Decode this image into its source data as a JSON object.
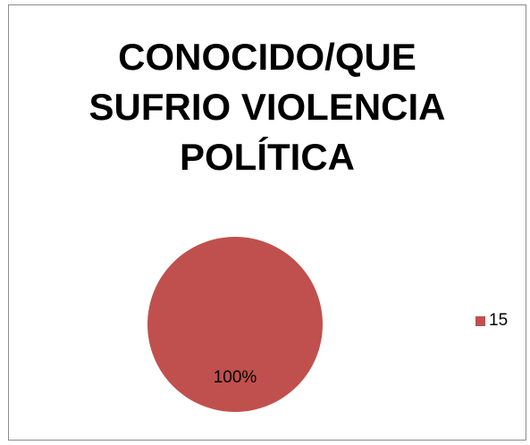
{
  "chart_data": {
    "type": "pie",
    "title_lines": [
      "CONOCIDO/QUE",
      "SUFRIO VIOLENCIA",
      "POLÍTICA"
    ],
    "slices": [
      {
        "label": "15",
        "value": 100,
        "display_label": "100%",
        "color": "#c0504d"
      }
    ],
    "legend": {
      "placement": "right",
      "entries": [
        {
          "label": "15",
          "color": "#c0504d"
        }
      ]
    }
  }
}
